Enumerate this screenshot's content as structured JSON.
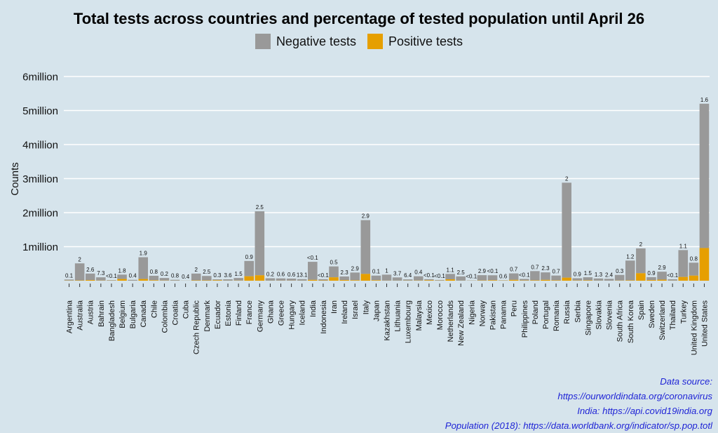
{
  "chart_data": {
    "type": "bar",
    "title": "Total tests across countries and percentage of tested population until April 26",
    "xlabel": "",
    "ylabel": "Counts",
    "ylim": [
      0,
      6000000
    ],
    "yticks": [
      {
        "value": 1000000,
        "label": "1million"
      },
      {
        "value": 2000000,
        "label": "2million"
      },
      {
        "value": 3000000,
        "label": "3million"
      },
      {
        "value": 4000000,
        "label": "4million"
      },
      {
        "value": 5000000,
        "label": "5million"
      },
      {
        "value": 6000000,
        "label": "6million"
      }
    ],
    "grid": true,
    "legend_position": "top",
    "stacked": true,
    "categories": [
      "Argentina",
      "Australia",
      "Austria",
      "Bahrain",
      "Bangladesh",
      "Belgium",
      "Bulgaria",
      "Canada",
      "Chile",
      "Colombia",
      "Croatia",
      "Cuba",
      "Czech Republic",
      "Denmark",
      "Ecuador",
      "Estonia",
      "Finland",
      "France",
      "Germany",
      "Ghana",
      "Greece",
      "Hungary",
      "Iceland",
      "India",
      "Indonesia",
      "Iran",
      "Ireland",
      "Israel",
      "Italy",
      "Japan",
      "Kazakhstan",
      "Lithuania",
      "Luxembourg",
      "Malaysia",
      "Mexico",
      "Morocco",
      "Netherlands",
      "New Zealand",
      "Nigeria",
      "Norway",
      "Pakistan",
      "Panama",
      "Peru",
      "Philippines",
      "Poland",
      "Portugal",
      "Romania",
      "Russia",
      "Serbia",
      "Singapore",
      "Slovakia",
      "Slovenia",
      "South Africa",
      "South Korea",
      "Spain",
      "Sweden",
      "Switzerland",
      "Thailand",
      "Turkey",
      "United Kingdom",
      "United States"
    ],
    "series": [
      {
        "name": "Negative tests",
        "color": "#999999",
        "values": [
          30000,
          500000,
          190000,
          95000,
          15000,
          130000,
          25000,
          640000,
          130000,
          75000,
          25000,
          4000,
          200000,
          130000,
          25000,
          40000,
          75000,
          450000,
          1880000,
          70000,
          65000,
          60000,
          45000,
          530000,
          35000,
          320000,
          105000,
          225000,
          1580000,
          135000,
          175000,
          95000,
          35000,
          125000,
          30000,
          18000,
          160000,
          125000,
          8000,
          155000,
          145000,
          10000,
          190000,
          45000,
          270000,
          220000,
          140000,
          2790000,
          65000,
          90000,
          65000,
          55000,
          165000,
          580000,
          730000,
          85000,
          235000,
          40000,
          790000,
          380000,
          4240000
        ]
      },
      {
        "name": "Positive tests",
        "color": "#e69f00",
        "values": [
          5000,
          10000,
          20000,
          5000,
          4000,
          50000,
          1000,
          50000,
          15000,
          5000,
          2000,
          1000,
          10000,
          10000,
          15000,
          2000,
          5000,
          130000,
          160000,
          2000,
          3000,
          3000,
          2000,
          25000,
          10000,
          100000,
          20000,
          15000,
          200000,
          15000,
          3000,
          2000,
          4000,
          6000,
          15000,
          4000,
          40000,
          2000,
          2000,
          8000,
          15000,
          5000,
          25000,
          8000,
          12000,
          25000,
          12000,
          90000,
          8000,
          12000,
          2000,
          1000,
          5000,
          12000,
          220000,
          20000,
          30000,
          3000,
          110000,
          150000,
          960000
        ]
      }
    ],
    "bar_labels": [
      "0.1",
      "2",
      "2.6",
      "7.3",
      "<0.1",
      "1.8",
      "0.4",
      "1.9",
      "0.8",
      "0.2",
      "0.8",
      "0.4",
      "2",
      "2.5",
      "0.3",
      "3.6",
      "1.5",
      "0.9",
      "2.5",
      "0.2",
      "0.6",
      "0.6",
      "13.1",
      "<0.1",
      "<0.1",
      "0.5",
      "2.3",
      "2.9",
      "2.9",
      "0.1",
      "1",
      "3.7",
      "6.4",
      "0.4",
      "<0.1",
      "<0.1",
      "1.1",
      "2.5",
      "<0.1",
      "2.9",
      "<0.1",
      "0.6",
      "0.7",
      "<0.1",
      "0.7",
      "2.3",
      "0.7",
      "2",
      "0.9",
      "1.5",
      "1.3",
      "2.4",
      "0.3",
      "1.2",
      "2",
      "0.9",
      "2.9",
      "<0.1",
      "1.1",
      "0.8",
      "1.6"
    ]
  },
  "legend": [
    {
      "label": "Negative tests",
      "color": "#999999"
    },
    {
      "label": "Positive tests",
      "color": "#e69f00"
    }
  ],
  "source": {
    "line1": "Data source:",
    "line2": "https://ourworldindata.org/coronavirus",
    "line3": "India: https://api.covid19india.org",
    "line4": "Population (2018): https://data.worldbank.org/indicator/sp.pop.totl"
  }
}
